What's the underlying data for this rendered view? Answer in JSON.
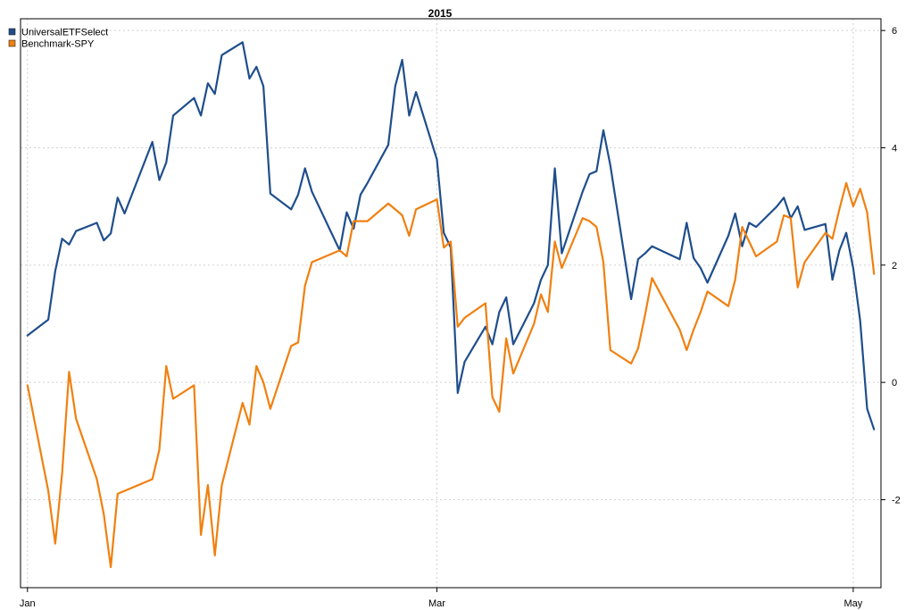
{
  "chart_data": {
    "type": "line",
    "title": "2015",
    "xlabel": "",
    "ylabel": "",
    "x_ticks": [
      {
        "label": "Jan",
        "date": "2015-01-02"
      },
      {
        "label": "Mar",
        "date": "2015-03-02"
      },
      {
        "label": "May",
        "date": "2015-05-01"
      }
    ],
    "y_ticks": [
      -2,
      0,
      2,
      4,
      6
    ],
    "ylim": [
      -3.5,
      6.2
    ],
    "xlim": [
      "2015-01-01",
      "2015-05-05"
    ],
    "y_axis_side": "right",
    "grid": true,
    "legend_position": "top-left",
    "series": [
      {
        "name": "UniversalETFSelect",
        "color": "#1f4e8c",
        "points": [
          [
            "2015-01-02",
            0.8
          ],
          [
            "2015-01-05",
            1.07
          ],
          [
            "2015-01-06",
            1.9
          ],
          [
            "2015-01-07",
            2.45
          ],
          [
            "2015-01-08",
            2.35
          ],
          [
            "2015-01-09",
            2.58
          ],
          [
            "2015-01-12",
            2.72
          ],
          [
            "2015-01-13",
            2.42
          ],
          [
            "2015-01-14",
            2.54
          ],
          [
            "2015-01-15",
            3.15
          ],
          [
            "2015-01-16",
            2.88
          ],
          [
            "2015-01-20",
            4.1
          ],
          [
            "2015-01-21",
            3.45
          ],
          [
            "2015-01-22",
            3.75
          ],
          [
            "2015-01-23",
            4.55
          ],
          [
            "2015-01-26",
            4.85
          ],
          [
            "2015-01-27",
            4.55
          ],
          [
            "2015-01-28",
            5.1
          ],
          [
            "2015-01-29",
            4.92
          ],
          [
            "2015-01-30",
            5.58
          ],
          [
            "2015-02-02",
            5.8
          ],
          [
            "2015-02-03",
            5.18
          ],
          [
            "2015-02-04",
            5.38
          ],
          [
            "2015-02-05",
            5.05
          ],
          [
            "2015-02-06",
            3.22
          ],
          [
            "2015-02-09",
            2.95
          ],
          [
            "2015-02-10",
            3.2
          ],
          [
            "2015-02-11",
            3.65
          ],
          [
            "2015-02-12",
            3.25
          ],
          [
            "2015-02-16",
            2.25
          ],
          [
            "2015-02-17",
            2.9
          ],
          [
            "2015-02-18",
            2.62
          ],
          [
            "2015-02-19",
            3.2
          ],
          [
            "2015-02-20",
            3.4
          ],
          [
            "2015-02-23",
            4.05
          ],
          [
            "2015-02-24",
            5.05
          ],
          [
            "2015-02-25",
            5.5
          ],
          [
            "2015-02-26",
            4.55
          ],
          [
            "2015-02-27",
            4.95
          ],
          [
            "2015-03-02",
            3.8
          ],
          [
            "2015-03-03",
            2.55
          ],
          [
            "2015-03-04",
            2.3
          ],
          [
            "2015-03-05",
            -0.18
          ],
          [
            "2015-03-06",
            0.35
          ],
          [
            "2015-03-09",
            0.95
          ],
          [
            "2015-03-10",
            0.65
          ],
          [
            "2015-03-11",
            1.2
          ],
          [
            "2015-03-12",
            1.45
          ],
          [
            "2015-03-13",
            0.65
          ],
          [
            "2015-03-16",
            1.35
          ],
          [
            "2015-03-17",
            1.75
          ],
          [
            "2015-03-18",
            2.0
          ],
          [
            "2015-03-19",
            3.65
          ],
          [
            "2015-03-20",
            2.2
          ],
          [
            "2015-03-23",
            3.25
          ],
          [
            "2015-03-24",
            3.55
          ],
          [
            "2015-03-25",
            3.6
          ],
          [
            "2015-03-26",
            4.3
          ],
          [
            "2015-03-27",
            3.7
          ],
          [
            "2015-03-30",
            1.42
          ],
          [
            "2015-03-31",
            2.1
          ],
          [
            "2015-04-01",
            2.2
          ],
          [
            "2015-04-02",
            2.32
          ],
          [
            "2015-04-06",
            2.1
          ],
          [
            "2015-04-07",
            2.72
          ],
          [
            "2015-04-08",
            2.12
          ],
          [
            "2015-04-09",
            1.95
          ],
          [
            "2015-04-10",
            1.7
          ],
          [
            "2015-04-13",
            2.5
          ],
          [
            "2015-04-14",
            2.88
          ],
          [
            "2015-04-15",
            2.32
          ],
          [
            "2015-04-16",
            2.72
          ],
          [
            "2015-04-17",
            2.65
          ],
          [
            "2015-04-20",
            3.0
          ],
          [
            "2015-04-21",
            3.15
          ],
          [
            "2015-04-22",
            2.8
          ],
          [
            "2015-04-23",
            3.0
          ],
          [
            "2015-04-24",
            2.6
          ],
          [
            "2015-04-27",
            2.7
          ],
          [
            "2015-04-28",
            1.75
          ],
          [
            "2015-04-29",
            2.25
          ],
          [
            "2015-04-30",
            2.55
          ],
          [
            "2015-05-01",
            1.95
          ],
          [
            "2015-05-02",
            1.05
          ],
          [
            "2015-05-03",
            -0.45
          ],
          [
            "2015-05-04",
            -0.8
          ]
        ]
      },
      {
        "name": "Benchmark-SPY",
        "color": "#f08010",
        "points": [
          [
            "2015-01-02",
            -0.05
          ],
          [
            "2015-01-05",
            -1.85
          ],
          [
            "2015-01-06",
            -2.75
          ],
          [
            "2015-01-07",
            -1.55
          ],
          [
            "2015-01-08",
            0.18
          ],
          [
            "2015-01-09",
            -0.62
          ],
          [
            "2015-01-12",
            -1.65
          ],
          [
            "2015-01-13",
            -2.25
          ],
          [
            "2015-01-14",
            -3.15
          ],
          [
            "2015-01-15",
            -1.9
          ],
          [
            "2015-01-16",
            -1.85
          ],
          [
            "2015-01-20",
            -1.65
          ],
          [
            "2015-01-21",
            -1.15
          ],
          [
            "2015-01-22",
            0.28
          ],
          [
            "2015-01-23",
            -0.28
          ],
          [
            "2015-01-26",
            -0.05
          ],
          [
            "2015-01-27",
            -2.6
          ],
          [
            "2015-01-28",
            -1.75
          ],
          [
            "2015-01-29",
            -2.95
          ],
          [
            "2015-01-30",
            -1.75
          ],
          [
            "2015-02-02",
            -0.35
          ],
          [
            "2015-02-03",
            -0.72
          ],
          [
            "2015-02-04",
            0.28
          ],
          [
            "2015-02-05",
            0.0
          ],
          [
            "2015-02-06",
            -0.45
          ],
          [
            "2015-02-09",
            0.62
          ],
          [
            "2015-02-10",
            0.68
          ],
          [
            "2015-02-11",
            1.65
          ],
          [
            "2015-02-12",
            2.05
          ],
          [
            "2015-02-16",
            2.25
          ],
          [
            "2015-02-17",
            2.15
          ],
          [
            "2015-02-18",
            2.75
          ],
          [
            "2015-02-19",
            2.75
          ],
          [
            "2015-02-20",
            2.75
          ],
          [
            "2015-02-23",
            3.05
          ],
          [
            "2015-02-24",
            2.95
          ],
          [
            "2015-02-25",
            2.85
          ],
          [
            "2015-02-26",
            2.5
          ],
          [
            "2015-02-27",
            2.95
          ],
          [
            "2015-03-02",
            3.12
          ],
          [
            "2015-03-03",
            2.3
          ],
          [
            "2015-03-04",
            2.4
          ],
          [
            "2015-03-05",
            0.95
          ],
          [
            "2015-03-06",
            1.1
          ],
          [
            "2015-03-09",
            1.35
          ],
          [
            "2015-03-10",
            -0.25
          ],
          [
            "2015-03-11",
            -0.5
          ],
          [
            "2015-03-12",
            0.75
          ],
          [
            "2015-03-13",
            0.15
          ],
          [
            "2015-03-16",
            1.0
          ],
          [
            "2015-03-17",
            1.5
          ],
          [
            "2015-03-18",
            1.2
          ],
          [
            "2015-03-19",
            2.4
          ],
          [
            "2015-03-20",
            1.95
          ],
          [
            "2015-03-23",
            2.8
          ],
          [
            "2015-03-24",
            2.75
          ],
          [
            "2015-03-25",
            2.65
          ],
          [
            "2015-03-26",
            2.05
          ],
          [
            "2015-03-27",
            0.55
          ],
          [
            "2015-03-30",
            0.32
          ],
          [
            "2015-03-31",
            0.58
          ],
          [
            "2015-04-01",
            1.15
          ],
          [
            "2015-04-02",
            1.78
          ],
          [
            "2015-04-06",
            0.9
          ],
          [
            "2015-04-07",
            0.55
          ],
          [
            "2015-04-08",
            0.9
          ],
          [
            "2015-04-09",
            1.2
          ],
          [
            "2015-04-10",
            1.55
          ],
          [
            "2015-04-13",
            1.3
          ],
          [
            "2015-04-14",
            1.75
          ],
          [
            "2015-04-15",
            2.65
          ],
          [
            "2015-04-16",
            2.4
          ],
          [
            "2015-04-17",
            2.15
          ],
          [
            "2015-04-20",
            2.4
          ],
          [
            "2015-04-21",
            2.85
          ],
          [
            "2015-04-22",
            2.8
          ],
          [
            "2015-04-23",
            1.62
          ],
          [
            "2015-04-24",
            2.05
          ],
          [
            "2015-04-27",
            2.55
          ],
          [
            "2015-04-28",
            2.45
          ],
          [
            "2015-04-29",
            2.95
          ],
          [
            "2015-04-30",
            3.4
          ],
          [
            "2015-05-01",
            3.0
          ],
          [
            "2015-05-02",
            3.3
          ],
          [
            "2015-05-03",
            2.9
          ],
          [
            "2015-05-04",
            1.85
          ]
        ]
      }
    ]
  }
}
